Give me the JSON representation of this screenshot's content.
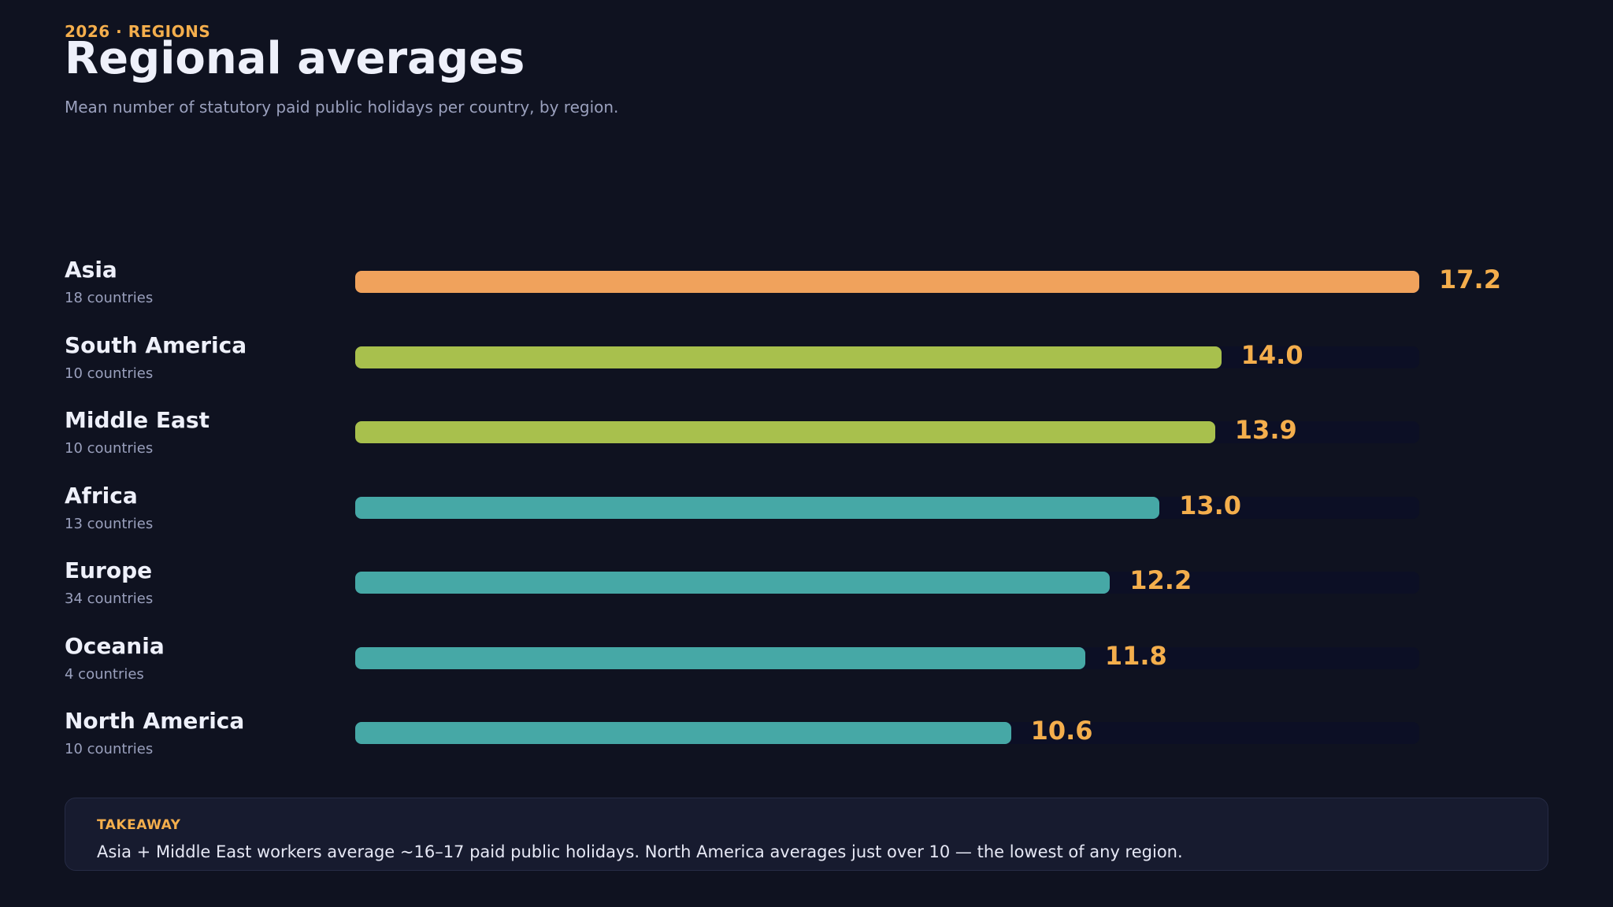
{
  "header": {
    "eyebrow": "2026  ·  REGIONS",
    "title": "Regional averages",
    "subtitle": "Mean number of statutory paid public holidays per country, by region."
  },
  "colors": {
    "background": "#0f1220",
    "accent": "#f4ae4c",
    "track": "#0c0f25"
  },
  "chart_data": {
    "type": "bar",
    "orientation": "horizontal",
    "title": "Regional averages",
    "xlim": [
      0,
      17.2
    ],
    "grid": false,
    "categories": [
      "Asia",
      "South America",
      "Middle East",
      "Africa",
      "Europe",
      "Oceania",
      "North America"
    ],
    "values": [
      17.2,
      14.0,
      13.9,
      13.0,
      12.2,
      11.8,
      10.6
    ],
    "value_labels": [
      "17.2",
      "14.0",
      "13.9",
      "13.0",
      "12.2",
      "11.8",
      "10.6"
    ],
    "counts": [
      "18 countries",
      "10 countries",
      "10 countries",
      "13 countries",
      "34 countries",
      "4 countries",
      "10 countries"
    ],
    "bar_colors": [
      "#f0a25c",
      "#a8c04d",
      "#a8c04d",
      "#46a8a6",
      "#46a8a6",
      "#46a8a6",
      "#46a8a6"
    ]
  },
  "takeaway": {
    "label": "TAKEAWAY",
    "text": "Asia + Middle East workers average ~16–17 paid public holidays. North America averages just over 10 — the lowest of any region."
  }
}
